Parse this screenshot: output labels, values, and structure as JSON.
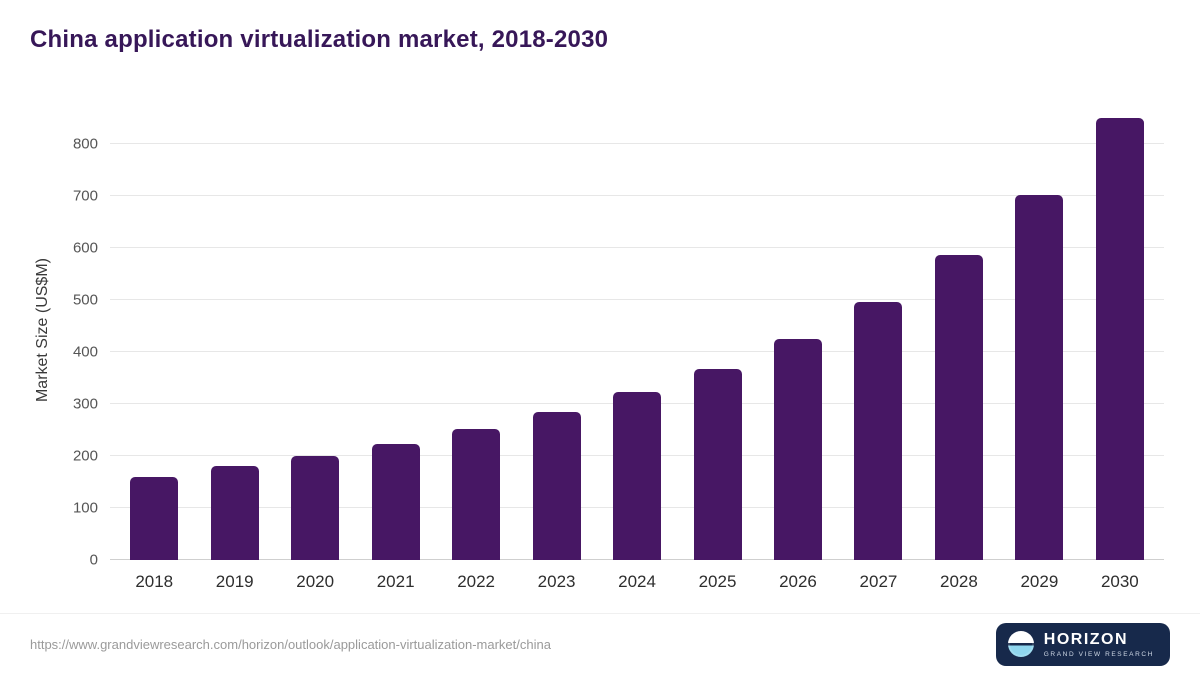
{
  "title": "China application virtualization market, 2018-2030",
  "colors": {
    "bar": "#471764",
    "title": "#371758",
    "grid": "#e7e7e7"
  },
  "chart_data": {
    "type": "bar",
    "title": "China application virtualization market, 2018-2030",
    "categories": [
      "2018",
      "2019",
      "2020",
      "2021",
      "2022",
      "2023",
      "2024",
      "2025",
      "2026",
      "2027",
      "2028",
      "2029",
      "2030"
    ],
    "values": [
      160,
      180,
      200,
      223,
      252,
      284,
      323,
      368,
      425,
      497,
      587,
      702,
      850
    ],
    "xlabel": "",
    "ylabel": "Market Size (US$M)",
    "ylim": [
      0,
      885
    ],
    "yticks": [
      0,
      100,
      200,
      300,
      400,
      500,
      600,
      700,
      800
    ],
    "grid": true,
    "legend": false
  },
  "footer": {
    "source_url": "https://www.grandviewresearch.com/horizon/outlook/application-virtualization-market/china",
    "logo": {
      "title": "HORIZON",
      "subtitle": "GRAND VIEW RESEARCH"
    }
  }
}
